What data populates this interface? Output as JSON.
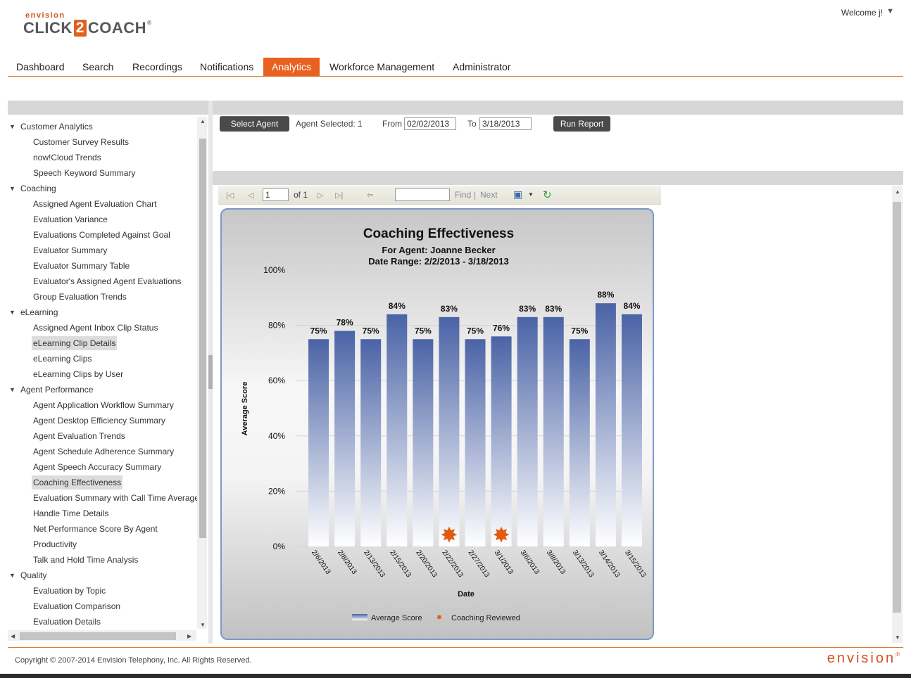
{
  "header": {
    "logo_small": "envision",
    "logo_click": "CLICK",
    "logo_two": "2",
    "logo_coach": "COACH",
    "logo_reg": "®",
    "welcome": "Welcome j!",
    "caret": "▼"
  },
  "nav": {
    "items": [
      "Dashboard",
      "Search",
      "Recordings",
      "Notifications",
      "Analytics",
      "Workforce Management",
      "Administrator"
    ],
    "active": "Analytics"
  },
  "sidebar": {
    "groups": [
      {
        "label": "Customer Analytics",
        "items": [
          "Customer Survey Results",
          "now!Cloud Trends",
          "Speech Keyword Summary"
        ]
      },
      {
        "label": "Coaching",
        "items": [
          "Assigned Agent Evaluation Chart",
          "Evaluation Variance",
          "Evaluations Completed Against Goal",
          "Evaluator Summary",
          "Evaluator Summary Table",
          "Evaluator's Assigned Agent Evaluations",
          "Group Evaluation Trends"
        ]
      },
      {
        "label": "eLearning",
        "items": [
          "Assigned Agent Inbox Clip Status",
          "eLearning Clip Details",
          "eLearning Clips",
          "eLearning Clips by User"
        ]
      },
      {
        "label": "Agent Performance",
        "items": [
          "Agent Application Workflow Summary",
          "Agent Desktop Efficiency Summary",
          "Agent Evaluation Trends",
          "Agent Schedule Adherence Summary",
          "Agent Speech Accuracy Summary",
          "Coaching Effectiveness",
          "Evaluation Summary with Call Time Average",
          "Handle Time Details",
          "Net Performance Score By Agent",
          "Productivity",
          "Talk and Hold Time Analysis"
        ]
      },
      {
        "label": "Quality",
        "items": [
          "Evaluation by Topic",
          "Evaluation Comparison",
          "Evaluation Details"
        ]
      }
    ],
    "highlighted": [
      "eLearning Clip Details",
      "Coaching Effectiveness"
    ]
  },
  "controls": {
    "select_agent": "Select Agent",
    "agent_selected": "Agent Selected: 1",
    "from_label": "From",
    "from_value": "02/02/2013",
    "to_label": "To",
    "to_value": "3/18/2013",
    "run_report": "Run Report"
  },
  "report_toolbar": {
    "page_value": "1",
    "of_label": "of 1",
    "find_value": "",
    "find_label": "Find",
    "separator": "|",
    "next_label": "Next"
  },
  "chart_data": {
    "type": "bar",
    "title": "Coaching Effectiveness",
    "subtitle_agent": "For Agent: Joanne Becker",
    "subtitle_range": "Date Range: 2/2/2013 - 3/18/2013",
    "xlabel": "Date",
    "ylabel": "Average Score",
    "ylim": [
      0,
      100
    ],
    "yticks": [
      "0%",
      "20%",
      "40%",
      "60%",
      "80%",
      "100%"
    ],
    "grid": true,
    "categories": [
      "2/6/2013",
      "2/8/2013",
      "2/13/2013",
      "2/15/2013",
      "2/20/2013",
      "2/22/2013",
      "2/27/2013",
      "3/1/2013",
      "3/6/2013",
      "3/8/2013",
      "3/13/2013",
      "3/14/2013",
      "3/15/2013"
    ],
    "series": [
      {
        "name": "Average Score",
        "values": [
          75,
          78,
          75,
          84,
          75,
          83,
          75,
          76,
          83,
          83,
          75,
          88,
          84
        ],
        "labels": [
          "75%",
          "78%",
          "75%",
          "84%",
          "75%",
          "83%",
          "75%",
          "76%",
          "83%",
          "83%",
          "75%",
          "88%",
          "84%"
        ]
      },
      {
        "name": "Coaching Reviewed",
        "markers_at": [
          "2/22/2013",
          "3/1/2013"
        ]
      }
    ],
    "legend_position": "bottom",
    "colors": {
      "bar_top": "#4a63a6",
      "bar_bottom": "#ffffff",
      "marker": "#e05a10"
    }
  },
  "footer": {
    "copyright": "Copyright © 2007-2014 Envision Telephony, Inc. All Rights Reserved.",
    "logo": "envision",
    "logo_reg": "®"
  },
  "colors": {
    "accent": "#e8611f",
    "nav_line": "#d9782b",
    "panel_border": "#7d99c9"
  }
}
